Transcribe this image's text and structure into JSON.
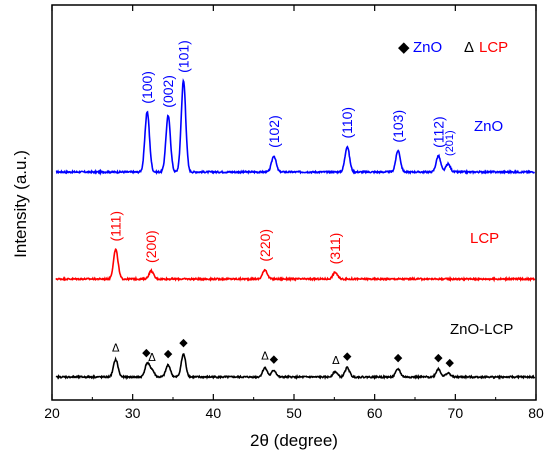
{
  "chart_data": {
    "type": "line",
    "title": "",
    "xlabel": "2θ (degree)",
    "ylabel": "Intensity (a.u.)",
    "xlim": [
      20,
      80
    ],
    "xticks": [
      "20",
      "30",
      "40",
      "50",
      "60",
      "70",
      "80"
    ],
    "y_ticks_shown": false,
    "grid": false,
    "legend": {
      "placement": "top-right",
      "entries": [
        {
          "symbol": "◆",
          "name": "ZnO",
          "color": "#0000ff"
        },
        {
          "symbol": "Δ",
          "name": "LCP",
          "color": "#ff0000"
        }
      ]
    },
    "series": [
      {
        "name": "ZnO",
        "color": "#0000ff",
        "baseline": 0.0,
        "peaks": [
          {
            "x": 31.8,
            "y": 0.45,
            "label": "(100)"
          },
          {
            "x": 34.4,
            "y": 0.42,
            "label": "(002)"
          },
          {
            "x": 36.3,
            "y": 0.68,
            "label": "(101)"
          },
          {
            "x": 47.5,
            "y": 0.12,
            "label": "(102)"
          },
          {
            "x": 56.6,
            "y": 0.19,
            "label": "(110)"
          },
          {
            "x": 62.9,
            "y": 0.16,
            "label": "(103)"
          },
          {
            "x": 67.9,
            "y": 0.12,
            "label": "(112)"
          },
          {
            "x": 69.1,
            "y": 0.06,
            "label": "(201)"
          }
        ]
      },
      {
        "name": "LCP",
        "color": "#ff0000",
        "baseline": 0.0,
        "peaks": [
          {
            "x": 27.9,
            "y": 0.22,
            "label": "(111)"
          },
          {
            "x": 32.3,
            "y": 0.06,
            "label": "(200)"
          },
          {
            "x": 46.4,
            "y": 0.07,
            "label": "(220)"
          },
          {
            "x": 55.1,
            "y": 0.05,
            "label": "(311)"
          }
        ]
      },
      {
        "name": "ZnO-LCP",
        "color": "#000000",
        "baseline": 0.0,
        "peaks": [
          {
            "x": 27.9,
            "y": 0.13
          },
          {
            "x": 31.8,
            "y": 0.1
          },
          {
            "x": 32.4,
            "y": 0.05
          },
          {
            "x": 34.4,
            "y": 0.09
          },
          {
            "x": 36.3,
            "y": 0.17
          },
          {
            "x": 46.4,
            "y": 0.07
          },
          {
            "x": 47.5,
            "y": 0.05
          },
          {
            "x": 55.1,
            "y": 0.04
          },
          {
            "x": 56.6,
            "y": 0.07
          },
          {
            "x": 62.9,
            "y": 0.06
          },
          {
            "x": 67.9,
            "y": 0.06
          },
          {
            "x": 69.1,
            "y": 0.03
          }
        ],
        "markers": [
          {
            "x": 27.9,
            "symbol": "Δ"
          },
          {
            "x": 31.7,
            "symbol": "◆"
          },
          {
            "x": 32.4,
            "symbol": "Δ"
          },
          {
            "x": 34.4,
            "symbol": "◆"
          },
          {
            "x": 36.3,
            "symbol": "◆"
          },
          {
            "x": 46.4,
            "symbol": "Δ"
          },
          {
            "x": 47.5,
            "symbol": "◆"
          },
          {
            "x": 55.2,
            "symbol": "Δ"
          },
          {
            "x": 56.6,
            "symbol": "◆"
          },
          {
            "x": 62.9,
            "symbol": "◆"
          },
          {
            "x": 67.9,
            "symbol": "◆"
          },
          {
            "x": 69.3,
            "symbol": "◆"
          }
        ]
      }
    ]
  }
}
